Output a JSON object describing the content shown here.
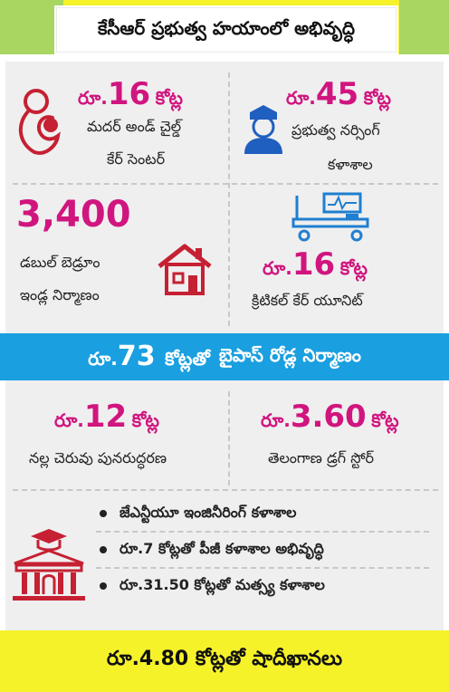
{
  "header": {
    "title": "కేసీఆర్ ప్రభుత్వ హయాంలో అభివృద్ధి"
  },
  "cards": [
    {
      "amount_prefix": "రూ.",
      "amount_number": "16",
      "amount_unit": "కోట్ల",
      "line1": "మదర్ అండ్ చైల్డ్",
      "line2": "కేర్ సెంటర్",
      "icon": "mother-child-icon"
    },
    {
      "amount_prefix": "రూ.",
      "amount_number": "45",
      "amount_unit": "కోట్ల",
      "line1": "ప్రభుత్వ నర్సింగ్",
      "line2": "కళాశాల",
      "icon": "nurse-icon"
    },
    {
      "amount_number": "3,400",
      "line1": "డబుల్ బెడ్రూం",
      "line2": "ఇండ్ల నిర్మాణం",
      "icon": "house-icon"
    },
    {
      "amount_prefix": "రూ.",
      "amount_number": "16",
      "amount_unit": "కోట్ల",
      "line1": "క్రిటికల్ కేర్ యూనిట్",
      "icon": "hospital-bed-icon"
    },
    {
      "amount_prefix": "రూ.",
      "amount_number": "12",
      "amount_unit": "కోట్ల",
      "line1": "నల్ల చెరువు పునరుద్ధరణ"
    },
    {
      "amount_prefix": "రూ.",
      "amount_number": "3.60",
      "amount_unit": "కోట్ల",
      "line1": "తెలంగాణ డ్రగ్ స్టోర్"
    }
  ],
  "band": {
    "amount_prefix": "రూ.",
    "amount_number": "73",
    "amount_unit": "కోట్లతో",
    "text": "బైపాస్ రోడ్ల నిర్మాణం"
  },
  "bullets": [
    "జేఎన్టీయూ ఇంజినీరింగ్ కళాశాల",
    "రూ.7 కోట్లతో పీజీ కళాశాల అభివృద్ధి",
    "రూ.31.50 కోట్లతో మత్స్య కళాశాల"
  ],
  "footer": {
    "text": "రూ.4.80 కోట్లతో షాదీఖానలు"
  },
  "colors": {
    "accent": "#d1157f",
    "band": "#1a9fe0",
    "yellow": "#f6f22a"
  }
}
